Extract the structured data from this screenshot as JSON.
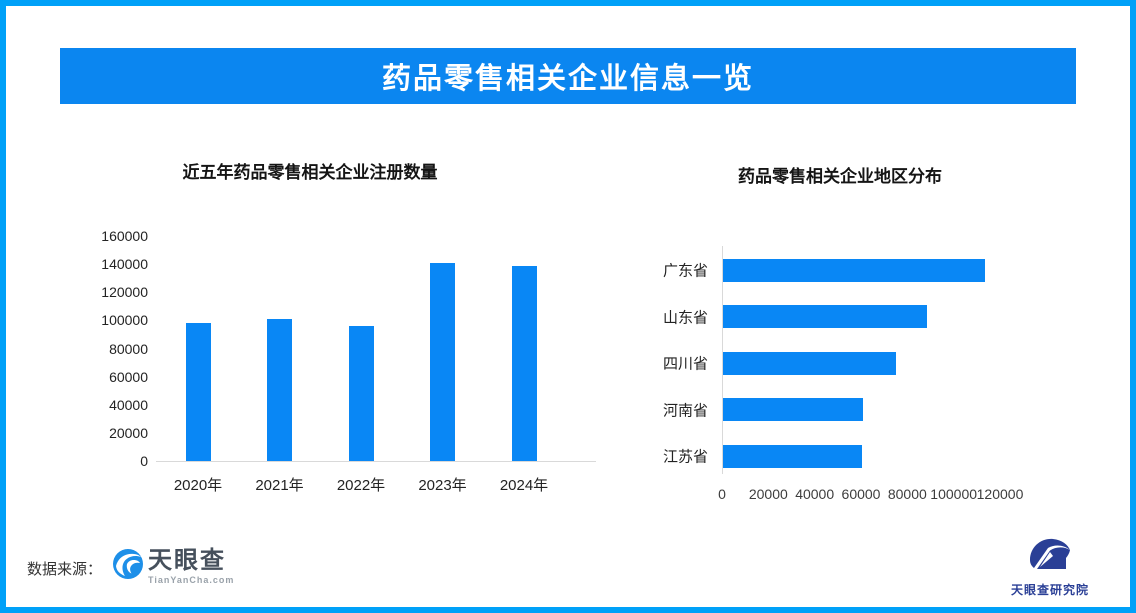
{
  "banner": {
    "title": "药品零售相关企业信息一览"
  },
  "colors": {
    "border": "#00a1f8",
    "banner_bg": "#0b86f0",
    "bar": "#0987f5",
    "axis_line": "#d9d9d9",
    "tianyancha_blue": "#1d8fe8",
    "research_navy": "#2a3f96"
  },
  "chart_data": [
    {
      "type": "bar",
      "orientation": "vertical",
      "title": "近五年药品零售相关企业注册数量",
      "categories": [
        "2020年",
        "2021年",
        "2022年",
        "2023年",
        "2024年"
      ],
      "values": [
        98000,
        101000,
        96000,
        140500,
        138500
      ],
      "xlabel": "",
      "ylabel": "",
      "ylim": [
        0,
        160000
      ],
      "yticks": [
        0,
        20000,
        40000,
        60000,
        80000,
        100000,
        120000,
        140000,
        160000
      ],
      "grid": false,
      "legend": false,
      "bar_color": "#0987f5"
    },
    {
      "type": "bar",
      "orientation": "horizontal",
      "title": "药品零售相关企业地区分布",
      "categories": [
        "广东省",
        "山东省",
        "四川省",
        "河南省",
        "江苏省"
      ],
      "values": [
        113000,
        88000,
        74500,
        60500,
        60000
      ],
      "xlabel": "",
      "ylabel": "",
      "xlim": [
        0,
        120000
      ],
      "xticks": [
        0,
        20000,
        40000,
        60000,
        80000,
        100000,
        120000
      ],
      "grid": false,
      "legend": false,
      "bar_color": "#0987f5"
    }
  ],
  "footer": {
    "source_label": "数据来源：",
    "tianyancha": {
      "name": "天眼查",
      "domain": "TianYanCha.com"
    },
    "research": {
      "name": "天眼查研究院"
    }
  }
}
